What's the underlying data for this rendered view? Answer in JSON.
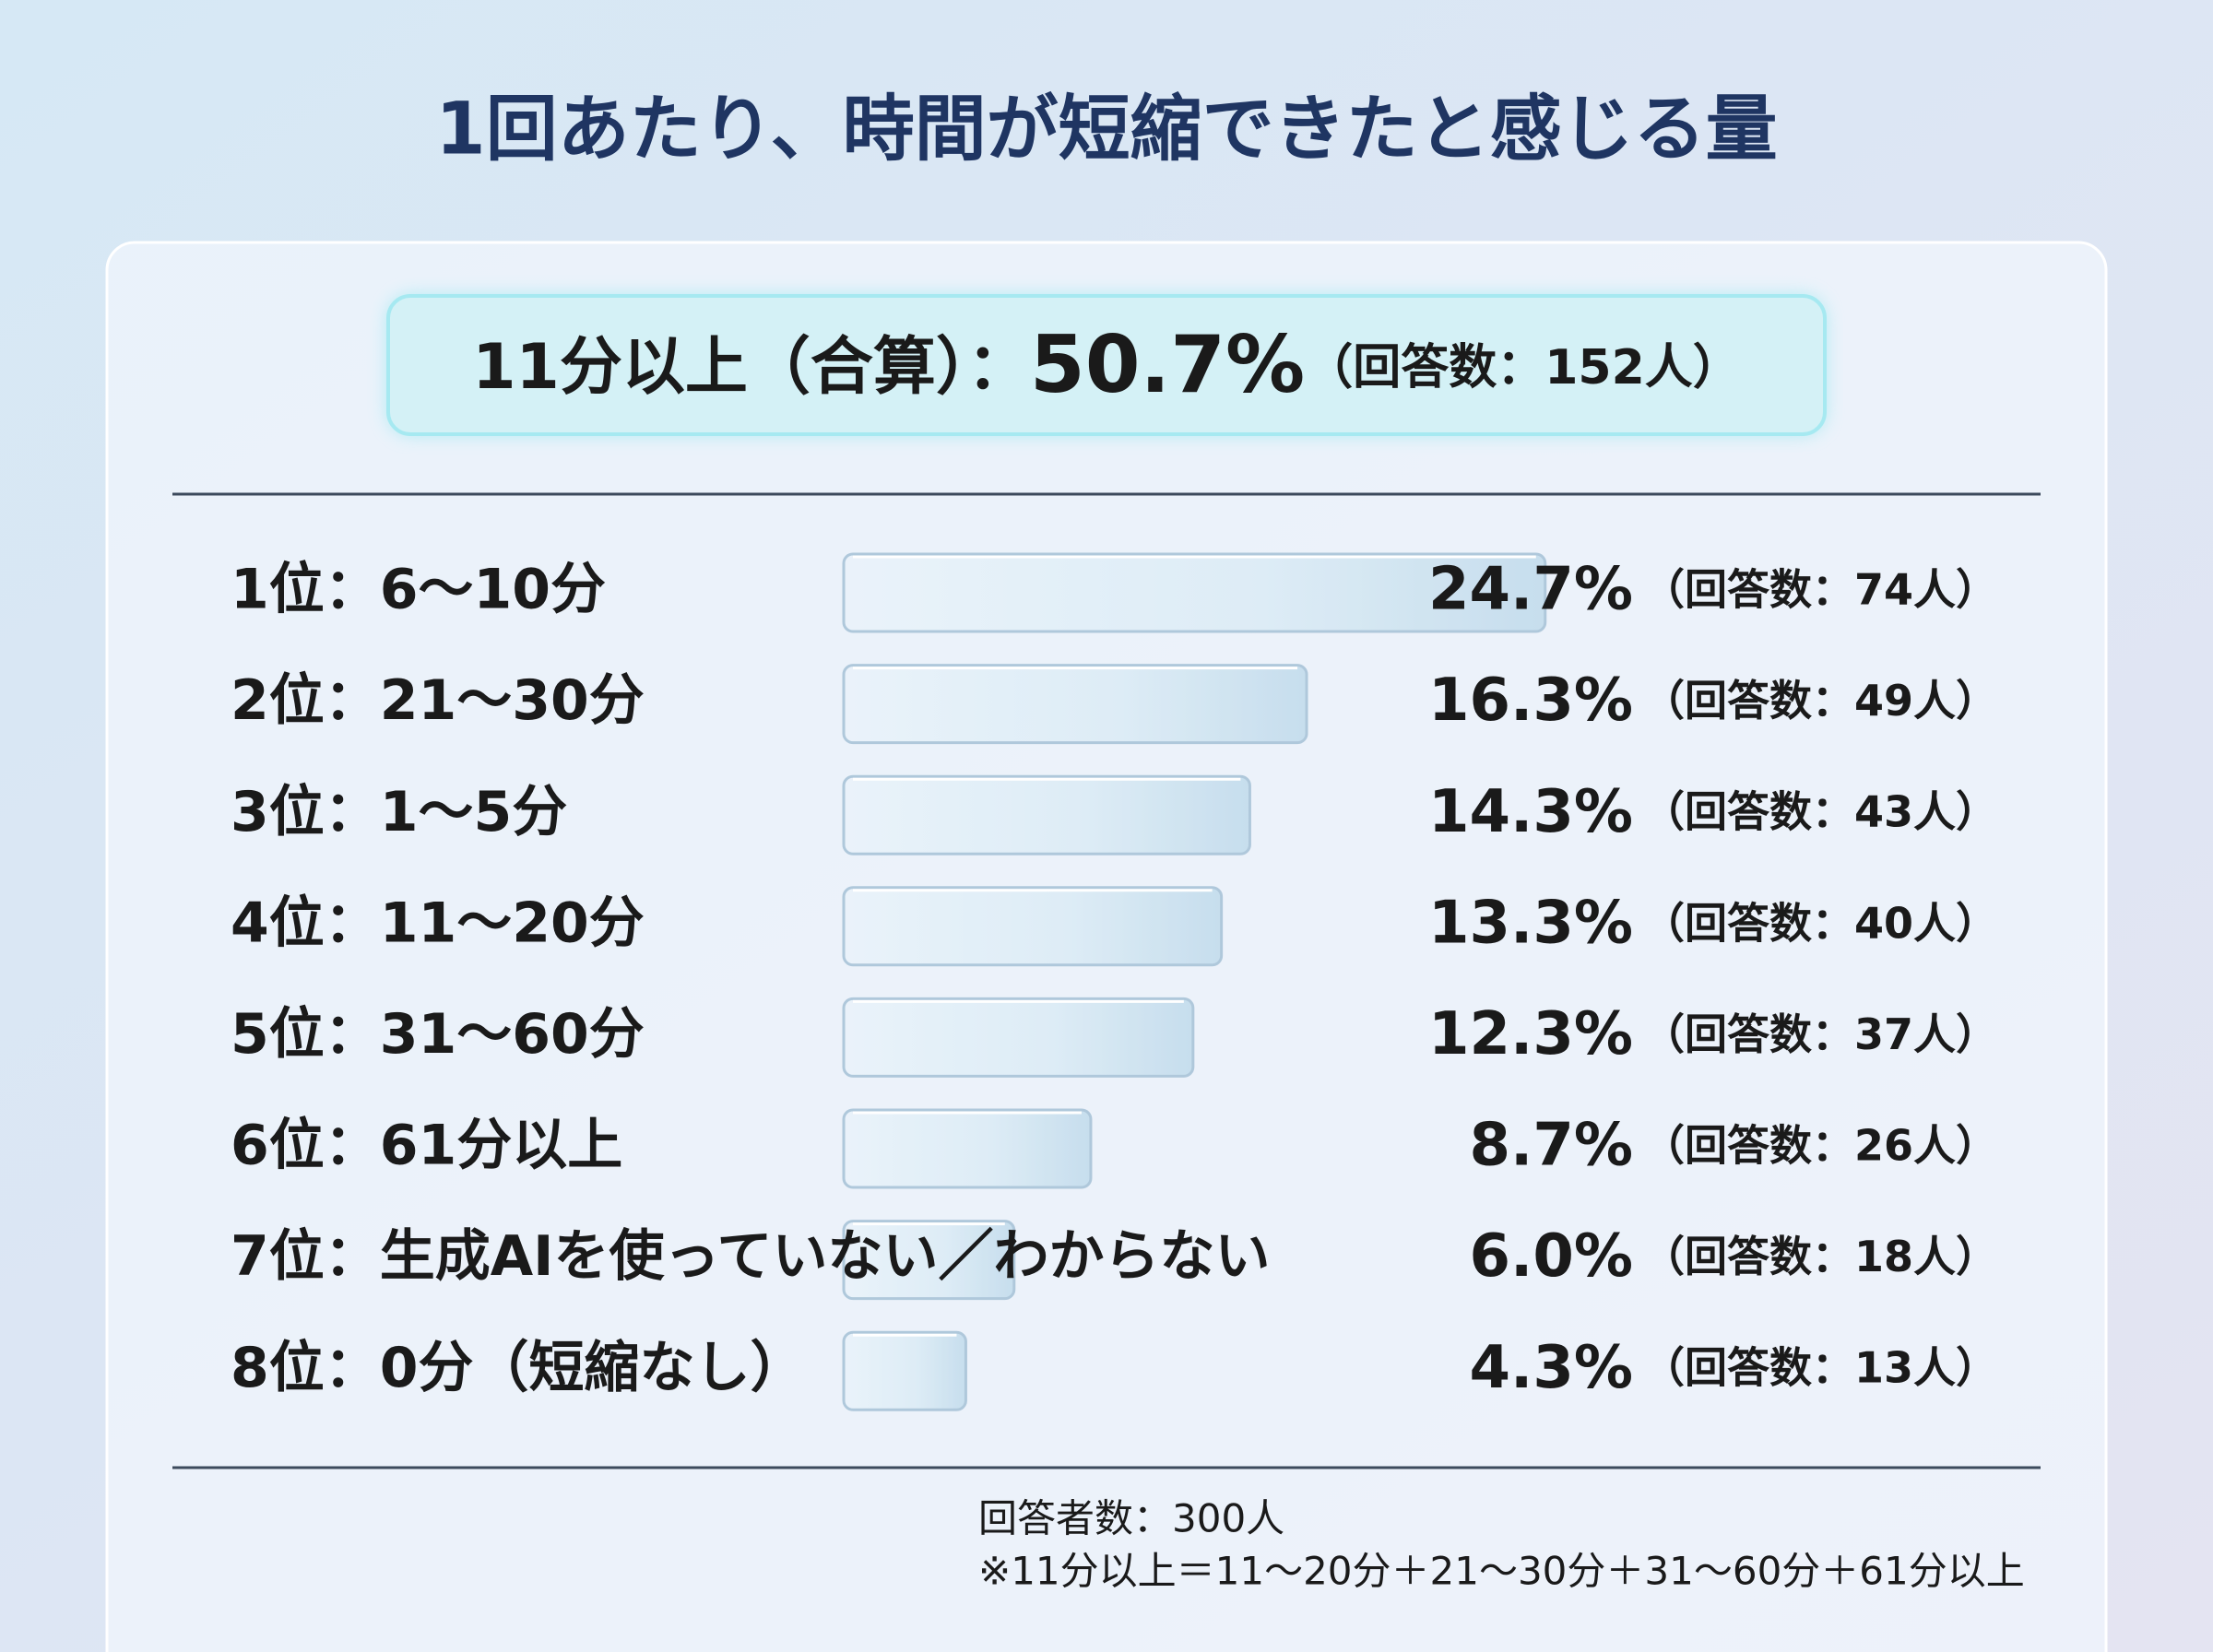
{
  "chart_data": {
    "type": "bar",
    "title": "1回あたり、時間が短縮できたと感じる量",
    "highlight": {
      "label": "11分以上（合算）：",
      "value": 50.7,
      "value_label": "50.7%",
      "count_label": "（回答数：152人）"
    },
    "categories": [
      "1位：6〜10分",
      "2位：21〜30分",
      "3位：1〜5分",
      "4位：11〜20分",
      "5位：31〜60分",
      "6位：61分以上",
      "7位：生成AIを使っていない／わからない",
      "8位：0分（短縮なし）"
    ],
    "values": [
      24.7,
      16.3,
      14.3,
      13.3,
      12.3,
      8.7,
      6.0,
      4.3
    ],
    "value_labels": [
      "24.7%",
      "16.3%",
      "14.3%",
      "13.3%",
      "12.3%",
      "8.7%",
      "6.0%",
      "4.3%"
    ],
    "count_labels": [
      "（回答数：74人）",
      "（回答数：49人）",
      "（回答数：43人）",
      "（回答数：40人）",
      "（回答数：37人）",
      "（回答数：26人）",
      "（回答数：18人）",
      "（回答数：13人）"
    ],
    "notes": [
      "回答者数：300人",
      "※11分以上＝11〜20分＋21〜30分＋31〜60分＋61分以上"
    ]
  }
}
